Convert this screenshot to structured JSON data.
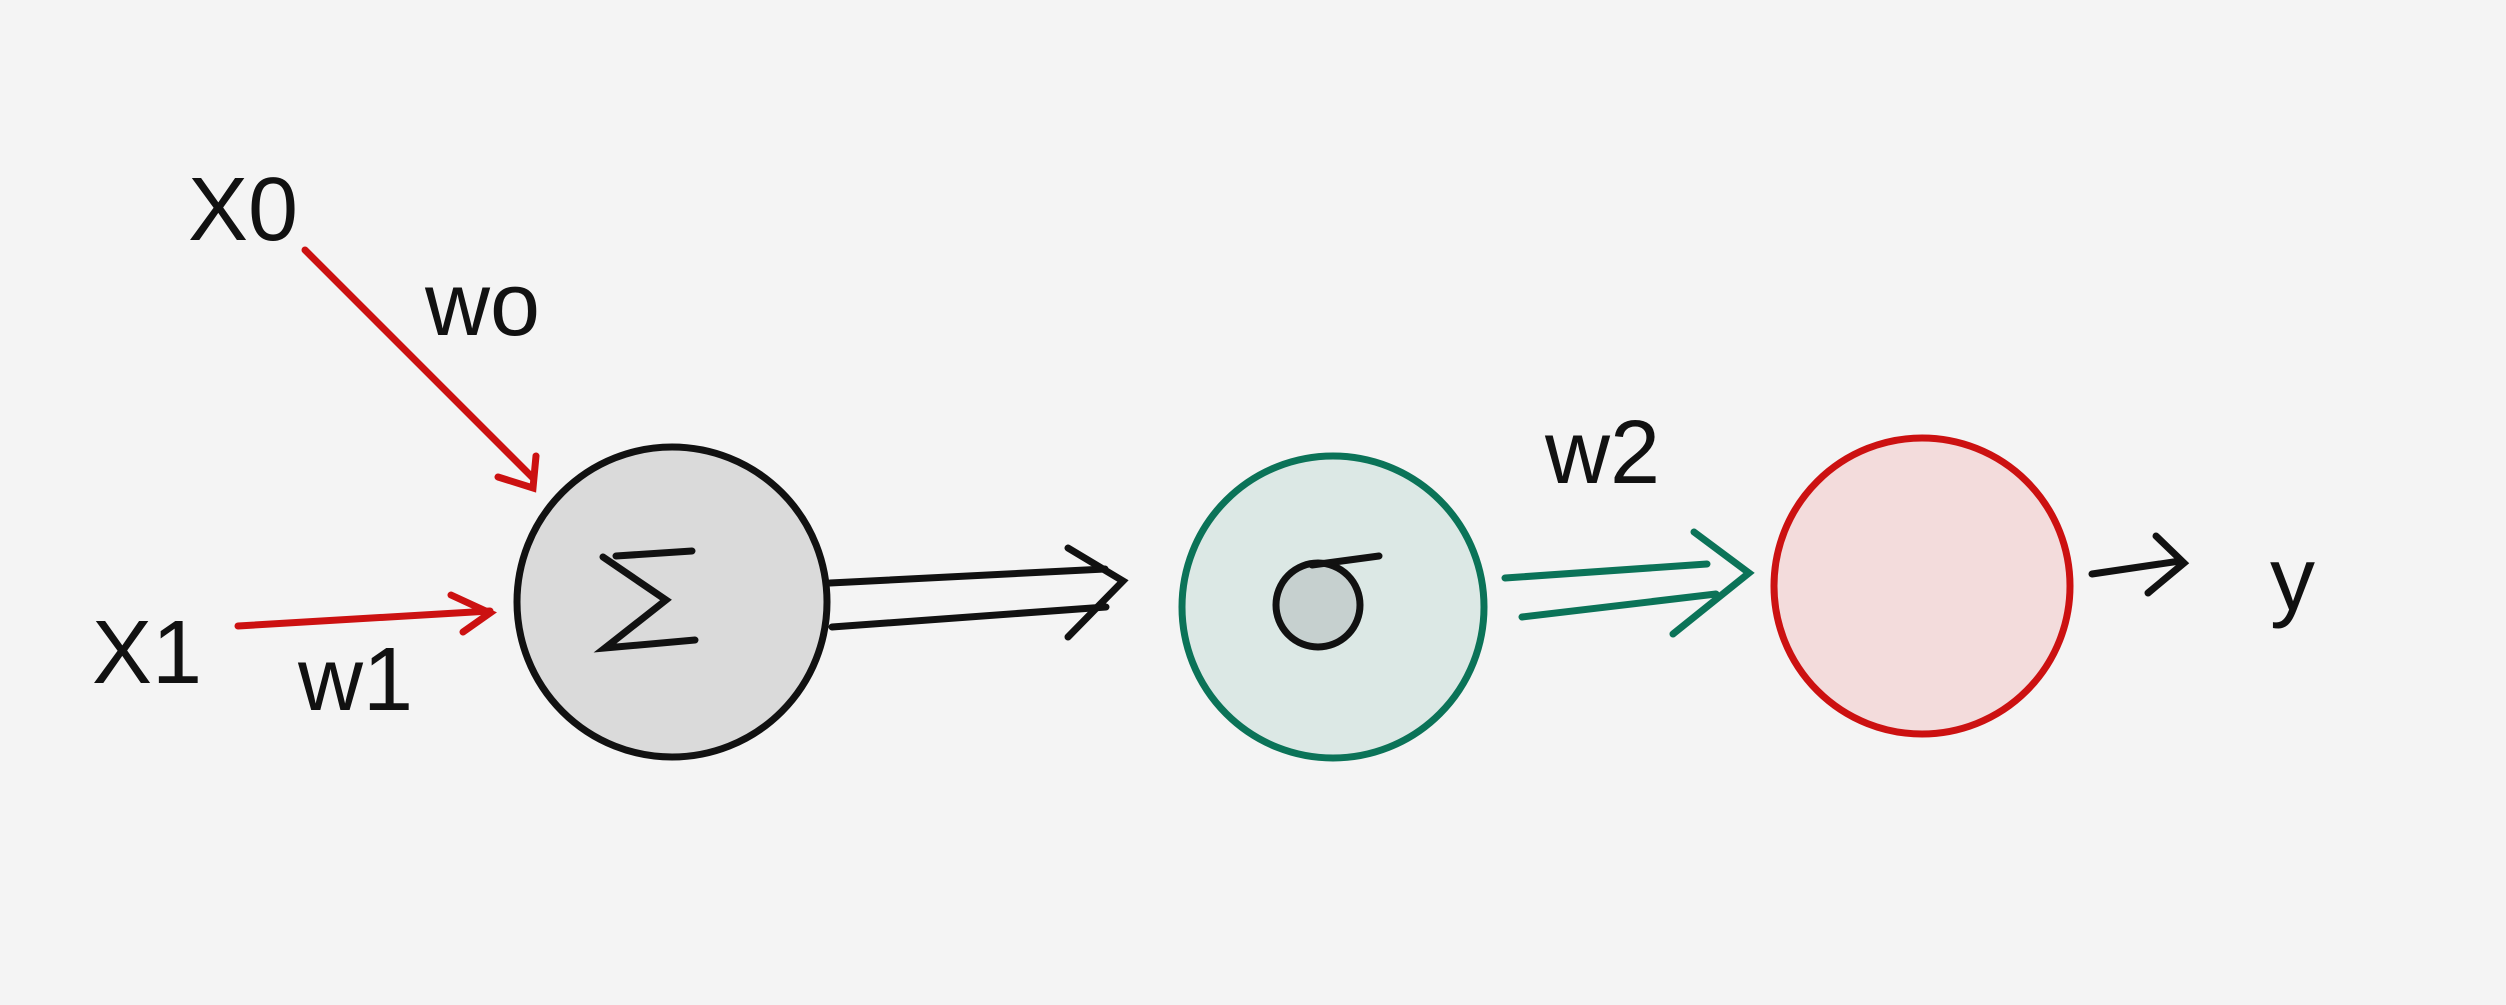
{
  "diagram": {
    "inputs": {
      "x0": "X0",
      "x1": "X1"
    },
    "weights": {
      "w0": "wo",
      "w1": "w1",
      "w2": "w2"
    },
    "nodes": {
      "sum_symbol": "Σ",
      "activation_symbol": "σ"
    },
    "output": "y"
  },
  "colors": {
    "background": "#f4f4f4",
    "input_edge": "#cc1111",
    "sum_stroke": "#111111",
    "sum_fill": "#dadada",
    "activation_stroke": "#0b7358",
    "activation_fill": "#dce8e5",
    "inner_dot_fill": "#c6d0cf",
    "output_stroke": "#cc1111",
    "output_fill": "#f3dcdc",
    "ink": "#111111"
  }
}
